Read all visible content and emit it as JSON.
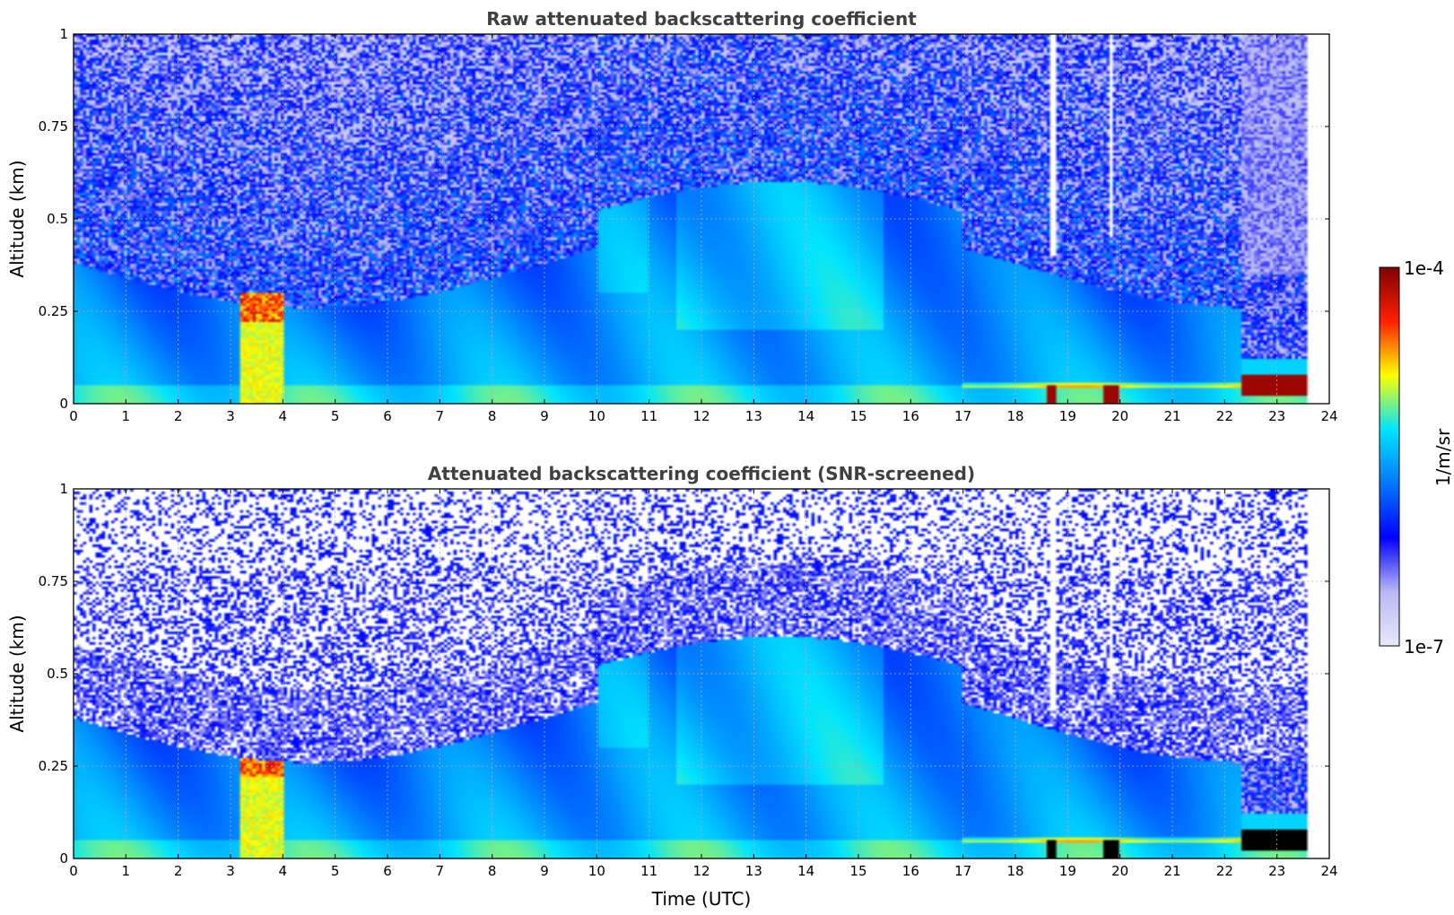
{
  "colormap": {
    "stops": [
      "#e8e8fa",
      "#b8b8f4",
      "#0000ff",
      "#0078ff",
      "#00e4ff",
      "#ffff00",
      "#ff2000",
      "#800000"
    ],
    "min_label": "1e-7",
    "max_label": "1e-4",
    "unit_label": "1/m/sr"
  },
  "chart_data": [
    {
      "type": "heatmap",
      "title": "Raw attenuated backscattering coefficient",
      "xlabel": "",
      "ylabel": "Altitude (km)",
      "xlim": [
        0,
        24
      ],
      "ylim": [
        0,
        1
      ],
      "xticks": [
        "0",
        "1",
        "2",
        "3",
        "4",
        "5",
        "6",
        "7",
        "8",
        "9",
        "10",
        "11",
        "12",
        "13",
        "14",
        "15",
        "16",
        "17",
        "18",
        "19",
        "20",
        "21",
        "22",
        "23",
        "24"
      ],
      "yticks": [
        "0",
        "0.25",
        "0.5",
        "0.75",
        "1"
      ],
      "grid": true,
      "color_scale": "log",
      "zlim": [
        1e-07,
        0.0001
      ],
      "data_end_time": 23.6,
      "features": [
        {
          "desc": "aerosol/fog layer",
          "t": [
            3.2,
            4.0
          ],
          "alt": [
            0,
            0.3
          ],
          "level": "1e-5"
        },
        {
          "desc": "strong near-surface return",
          "t": [
            22.3,
            23.6
          ],
          "alt": [
            0.02,
            0.08
          ],
          "level": "1e-4"
        },
        {
          "desc": "strong near-surface return",
          "t": [
            18.6,
            18.8
          ],
          "alt": [
            0,
            0.05
          ],
          "level": "1e-4"
        },
        {
          "desc": "strong near-surface return",
          "t": [
            19.7,
            20.0
          ],
          "alt": [
            0,
            0.05
          ],
          "level": "1e-4"
        },
        {
          "desc": "signal dropout",
          "t": [
            18.7,
            18.75
          ],
          "alt": [
            0.4,
            1.0
          ]
        },
        {
          "desc": "signal dropout",
          "t": [
            19.8,
            19.85
          ],
          "alt": [
            0.45,
            1.0
          ]
        }
      ]
    },
    {
      "type": "heatmap",
      "title": "Attenuated backscattering coefficient (SNR-screened)",
      "xlabel": "Time (UTC)",
      "ylabel": "Altitude (km)",
      "xlim": [
        0,
        24
      ],
      "ylim": [
        0,
        1
      ],
      "xticks": [
        "0",
        "1",
        "2",
        "3",
        "4",
        "5",
        "6",
        "7",
        "8",
        "9",
        "10",
        "11",
        "12",
        "13",
        "14",
        "15",
        "16",
        "17",
        "18",
        "19",
        "20",
        "21",
        "22",
        "23",
        "24"
      ],
      "yticks": [
        "0",
        "0.25",
        "0.5",
        "0.75",
        "1"
      ],
      "grid": true,
      "color_scale": "log",
      "zlim": [
        1e-07,
        0.0001
      ],
      "data_end_time": 23.6,
      "features": [
        {
          "desc": "aerosol/fog layer",
          "t": [
            3.2,
            4.0
          ],
          "alt": [
            0,
            0.3
          ],
          "level": "1e-5"
        },
        {
          "desc": "saturated near-surface return (black)",
          "t": [
            22.3,
            23.6
          ],
          "alt": [
            0.01,
            0.08
          ]
        },
        {
          "desc": "saturated near-surface return (black)",
          "t": [
            18.6,
            18.8
          ],
          "alt": [
            0,
            0.05
          ]
        },
        {
          "desc": "saturated near-surface return (black)",
          "t": [
            19.7,
            20.0
          ],
          "alt": [
            0,
            0.05
          ]
        }
      ]
    }
  ]
}
